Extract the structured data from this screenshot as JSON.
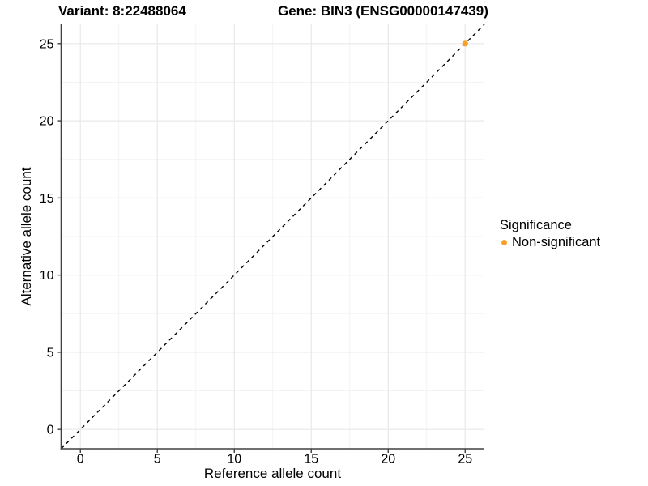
{
  "header": {
    "variant_title": "Variant: 8:22488064",
    "gene_title": "Gene: BIN3 (ENSG00000147439)"
  },
  "legend": {
    "title": "Significance",
    "items": [
      {
        "label": "Non-significant",
        "color": "#F9A02C",
        "marker": "dot-icon"
      }
    ]
  },
  "chart_data": {
    "type": "scatter",
    "title": "Variant: 8:22488064 — Gene: BIN3 (ENSG00000147439)",
    "xlabel": "Reference allele count",
    "ylabel": "Alternative allele count",
    "xlim": [
      -1.25,
      26.25
    ],
    "ylim": [
      -1.25,
      26.25
    ],
    "xticks": [
      0,
      5,
      10,
      15,
      20,
      25
    ],
    "yticks": [
      0,
      5,
      10,
      15,
      20,
      25
    ],
    "minor_grid_step": 2.5,
    "grid": true,
    "legend_position": "right",
    "series": [
      {
        "name": "Non-significant",
        "color": "#F9A02C",
        "points": [
          {
            "x": 25,
            "y": 25
          }
        ]
      }
    ],
    "reference_line": {
      "type": "identity y = x",
      "style": "dashed",
      "color": "#000000"
    },
    "colors": {
      "background": "#FFFFFF",
      "grid_major": "#E8E8E8",
      "grid_minor": "#F3F3F3",
      "axis_line": "#404040",
      "tick_text": "#000000"
    }
  }
}
